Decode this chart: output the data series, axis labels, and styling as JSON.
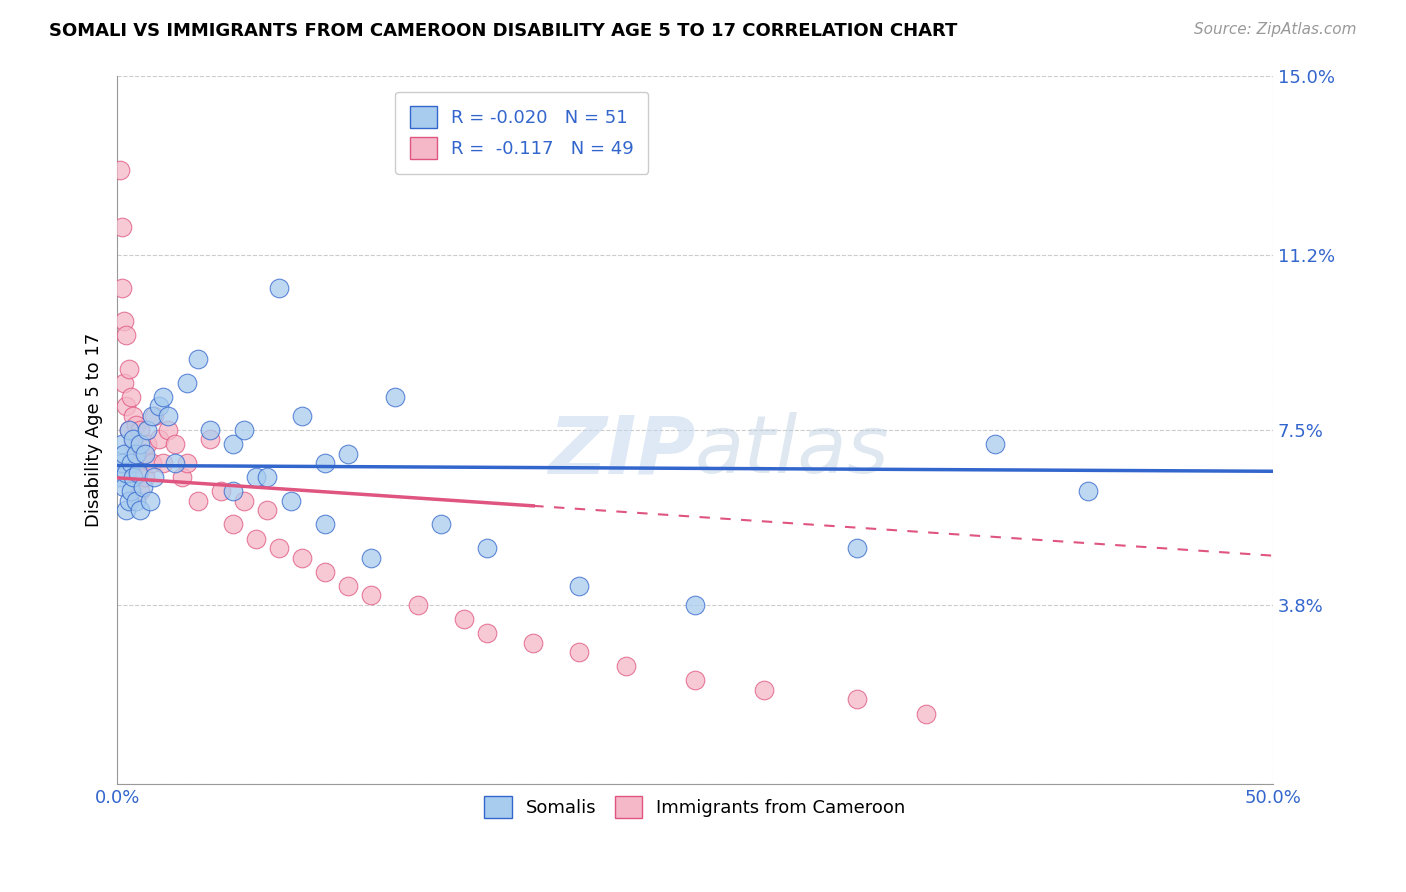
{
  "title": "SOMALI VS IMMIGRANTS FROM CAMEROON DISABILITY AGE 5 TO 17 CORRELATION CHART",
  "source": "Source: ZipAtlas.com",
  "ylabel": "Disability Age 5 to 17",
  "xlim": [
    0.0,
    0.5
  ],
  "ylim": [
    0.0,
    0.15
  ],
  "xticks": [
    0.0,
    0.1,
    0.2,
    0.3,
    0.4,
    0.5
  ],
  "xticklabels": [
    "0.0%",
    "",
    "",
    "",
    "",
    "50.0%"
  ],
  "yticks": [
    0.0,
    0.038,
    0.075,
    0.112,
    0.15
  ],
  "yticklabels": [
    "",
    "3.8%",
    "7.5%",
    "11.2%",
    "15.0%"
  ],
  "somali_color": "#A8CCEE",
  "cameroon_color": "#F5B8C8",
  "line_somali_color": "#3366CC",
  "line_cameroon_color": "#E05580",
  "watermark_zip": "ZIP",
  "watermark_atlas": "atlas",
  "somali_x": [
    0.001,
    0.002,
    0.002,
    0.003,
    0.003,
    0.004,
    0.004,
    0.005,
    0.005,
    0.006,
    0.006,
    0.007,
    0.007,
    0.008,
    0.008,
    0.009,
    0.01,
    0.01,
    0.011,
    0.012,
    0.013,
    0.014,
    0.015,
    0.016,
    0.018,
    0.02,
    0.022,
    0.025,
    0.03,
    0.035,
    0.04,
    0.05,
    0.06,
    0.07,
    0.08,
    0.09,
    0.1,
    0.12,
    0.14,
    0.16,
    0.2,
    0.25,
    0.32,
    0.38,
    0.42,
    0.05,
    0.055,
    0.065,
    0.075,
    0.09,
    0.11
  ],
  "somali_y": [
    0.065,
    0.068,
    0.072,
    0.063,
    0.07,
    0.058,
    0.066,
    0.06,
    0.075,
    0.062,
    0.068,
    0.073,
    0.065,
    0.07,
    0.06,
    0.066,
    0.072,
    0.058,
    0.063,
    0.07,
    0.075,
    0.06,
    0.078,
    0.065,
    0.08,
    0.082,
    0.078,
    0.068,
    0.085,
    0.09,
    0.075,
    0.072,
    0.065,
    0.105,
    0.078,
    0.068,
    0.07,
    0.082,
    0.055,
    0.05,
    0.042,
    0.038,
    0.05,
    0.072,
    0.062,
    0.062,
    0.075,
    0.065,
    0.06,
    0.055,
    0.048
  ],
  "cameroon_x": [
    0.001,
    0.002,
    0.002,
    0.003,
    0.003,
    0.004,
    0.004,
    0.005,
    0.005,
    0.006,
    0.007,
    0.007,
    0.008,
    0.009,
    0.01,
    0.01,
    0.011,
    0.012,
    0.013,
    0.015,
    0.016,
    0.018,
    0.02,
    0.022,
    0.025,
    0.028,
    0.03,
    0.035,
    0.04,
    0.045,
    0.05,
    0.055,
    0.06,
    0.065,
    0.07,
    0.08,
    0.09,
    0.1,
    0.11,
    0.13,
    0.15,
    0.16,
    0.18,
    0.2,
    0.22,
    0.25,
    0.28,
    0.32,
    0.35
  ],
  "cameroon_y": [
    0.13,
    0.105,
    0.118,
    0.098,
    0.085,
    0.095,
    0.08,
    0.088,
    0.075,
    0.082,
    0.078,
    0.072,
    0.076,
    0.068,
    0.075,
    0.062,
    0.07,
    0.065,
    0.072,
    0.068,
    0.078,
    0.073,
    0.068,
    0.075,
    0.072,
    0.065,
    0.068,
    0.06,
    0.073,
    0.062,
    0.055,
    0.06,
    0.052,
    0.058,
    0.05,
    0.048,
    0.045,
    0.042,
    0.04,
    0.038,
    0.035,
    0.032,
    0.03,
    0.028,
    0.025,
    0.022,
    0.02,
    0.018,
    0.015
  ],
  "somali_r": -0.02,
  "somali_n": 51,
  "cameroon_r": -0.117,
  "cameroon_n": 49
}
